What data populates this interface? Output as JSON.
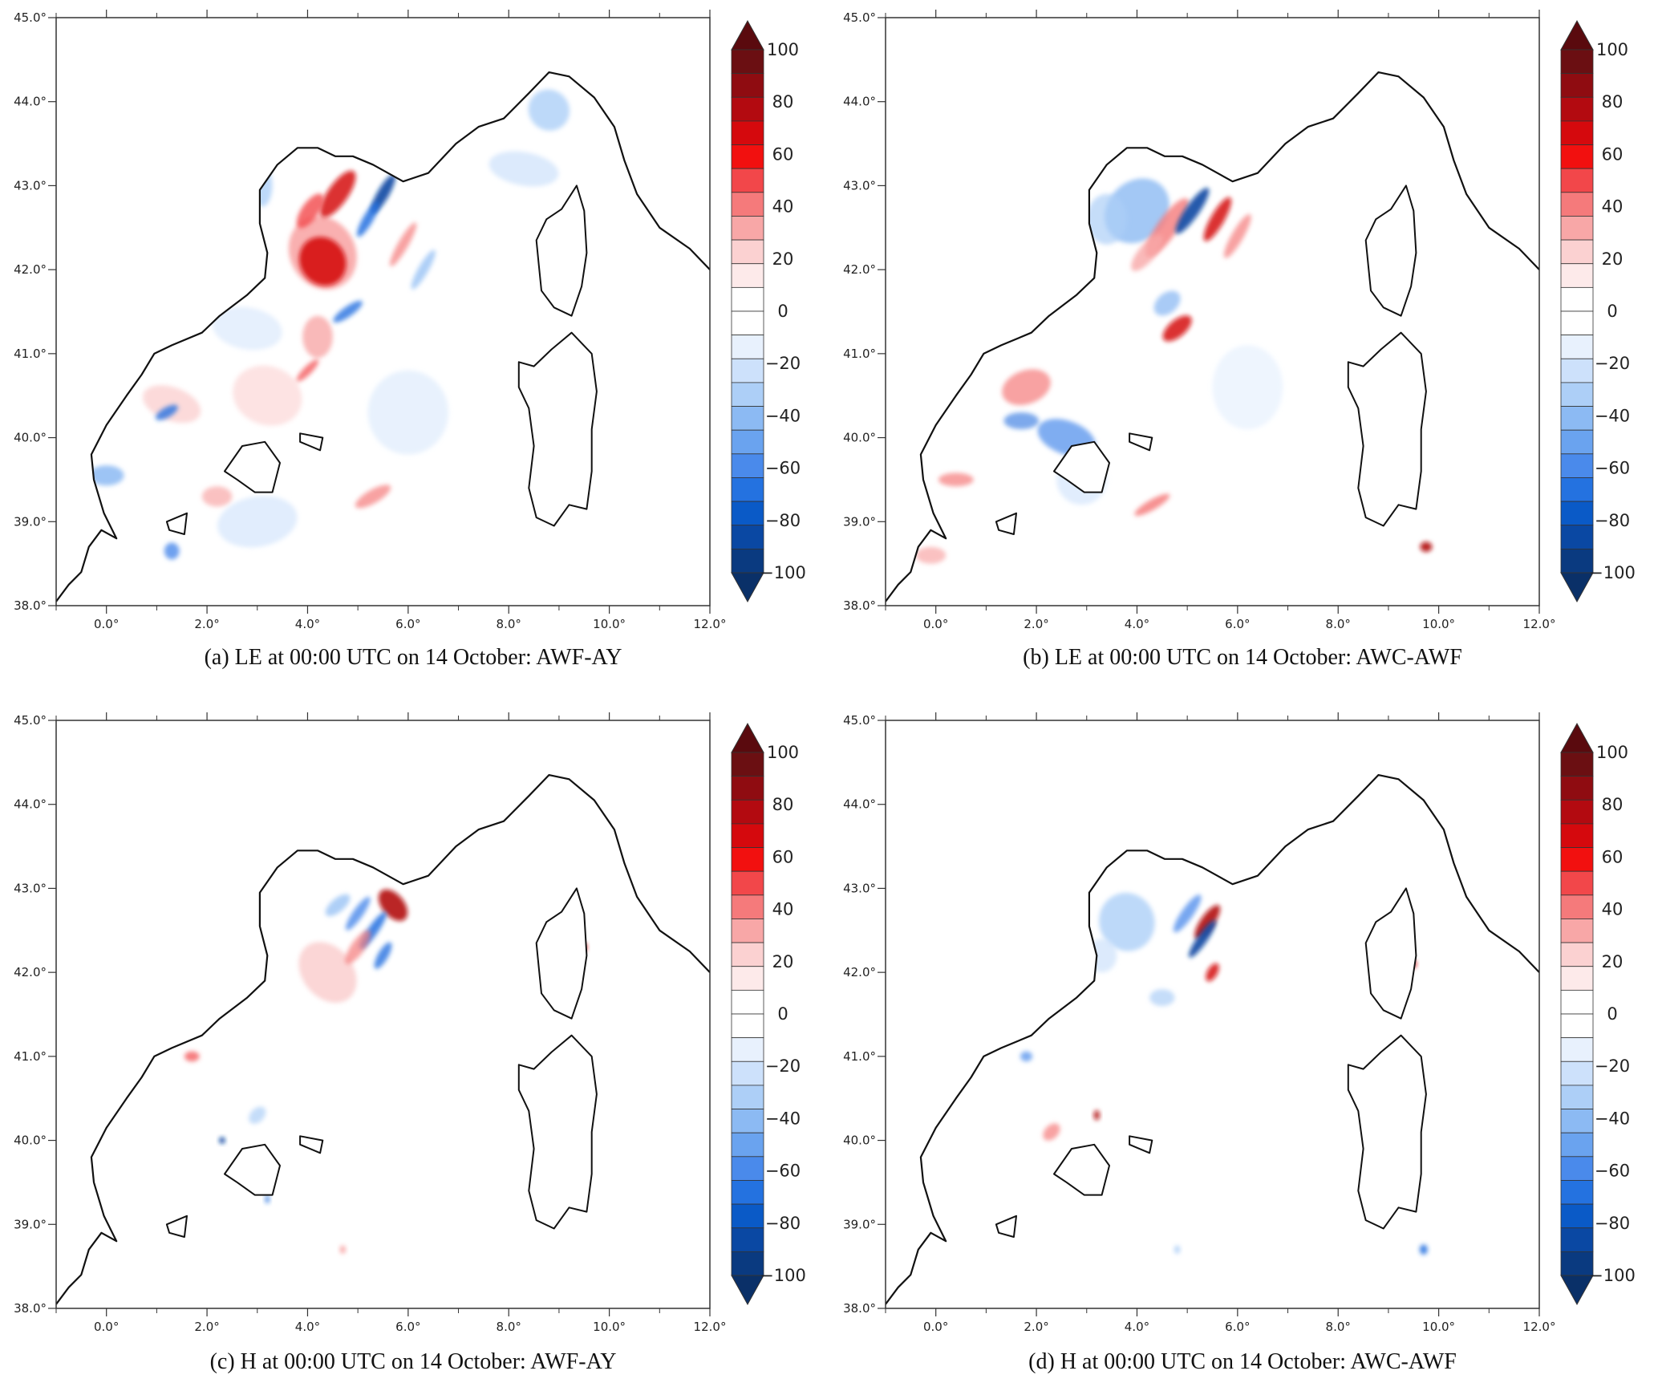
{
  "figure": {
    "panels": [
      {
        "id": "a",
        "caption": "(a) LE at 00:00 UTC on 14 October: AWF-AY",
        "variable": "LE",
        "experiment": "AWF-AY"
      },
      {
        "id": "b",
        "caption": "(b) LE at 00:00 UTC on 14 October: AWC-AWF",
        "variable": "LE",
        "experiment": "AWC-AWF"
      },
      {
        "id": "c",
        "caption": "(c) H at 00:00 UTC on 14 October: AWF-AY",
        "variable": "H",
        "experiment": "AWF-AY"
      },
      {
        "id": "d",
        "caption": "(d) H at 00:00 UTC on 14 October: AWC-AWF",
        "variable": "H",
        "experiment": "AWC-AWF"
      }
    ],
    "lon_ticks": [
      "0.0°",
      "2.0°",
      "4.0°",
      "6.0°",
      "8.0°",
      "10.0°",
      "12.0°"
    ],
    "lat_ticks": [
      "38.0°",
      "39.0°",
      "40.0°",
      "41.0°",
      "42.0°",
      "43.0°",
      "44.0°",
      "45.0°"
    ],
    "lon_range": [
      -1.0,
      12.0
    ],
    "lat_range": [
      38.0,
      45.0
    ],
    "colorbar": {
      "labels": [
        "100",
        "80",
        "60",
        "40",
        "20",
        "0",
        "−20",
        "−40",
        "−60",
        "−80",
        "−100"
      ],
      "range": [
        -100,
        100
      ],
      "extend": "both",
      "colors_top_to_bottom": [
        "#6b0f12",
        "#8f0c11",
        "#b30a10",
        "#d5090d",
        "#f2100f",
        "#f2474a",
        "#f57a7b",
        "#f8a7a7",
        "#fbd1d1",
        "#fdeaea",
        "#ffffff",
        "#ffffff",
        "#e8f1fd",
        "#cde1fb",
        "#adcff7",
        "#8cbaf3",
        "#6aa3ef",
        "#4a8aeb",
        "#2472e0",
        "#0a5ac7",
        "#0a48a3",
        "#0a3a80"
      ],
      "triangle_top_color": "#5a0a0e",
      "triangle_bottom_color": "#0a3068"
    }
  }
}
